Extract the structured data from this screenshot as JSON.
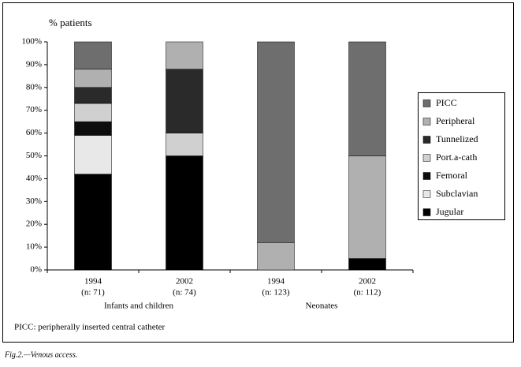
{
  "chart_data": {
    "type": "stacked_bar",
    "ylabel": "% patients",
    "categories": [
      [
        "1994",
        "(n: 71)"
      ],
      [
        "2002",
        "(n: 74)"
      ],
      [
        "1994",
        "(n: 123)"
      ],
      [
        "2002",
        "(n: 112)"
      ]
    ],
    "groups": [
      "Infants and children",
      "Neonates"
    ],
    "series": [
      {
        "name": "Jugular",
        "color": "#000000",
        "values": [
          42,
          50,
          0,
          5
        ]
      },
      {
        "name": "Subclavian",
        "color": "#e8e8e8",
        "values": [
          17,
          0,
          0,
          0
        ]
      },
      {
        "name": "Femoral",
        "color": "#0d0d0d",
        "values": [
          6,
          0,
          0,
          0
        ]
      },
      {
        "name": "Port.a-cath",
        "color": "#d0d0d0",
        "values": [
          8,
          10,
          0,
          0
        ]
      },
      {
        "name": "Tunnelized",
        "color": "#2a2a2a",
        "values": [
          7,
          28,
          0,
          0
        ]
      },
      {
        "name": "Peripheral",
        "color": "#b0b0b0",
        "values": [
          8,
          12,
          12,
          45
        ]
      },
      {
        "name": "PICC",
        "color": "#6e6e6e",
        "values": [
          12,
          0,
          88,
          50
        ]
      }
    ],
    "ylim": [
      0,
      100
    ],
    "yticks": [
      {
        "value": 0,
        "label": "0%"
      },
      {
        "value": 10,
        "label": "10%"
      },
      {
        "value": 20,
        "label": "20%"
      },
      {
        "value": 30,
        "label": "30%"
      },
      {
        "value": 40,
        "label": "40%"
      },
      {
        "value": 50,
        "label": "50%"
      },
      {
        "value": 60,
        "label": "60%"
      },
      {
        "value": 70,
        "label": "70%"
      },
      {
        "value": 80,
        "label": "80%"
      },
      {
        "value": 90,
        "label": "90%"
      },
      {
        "value": 100,
        "label": "100%"
      }
    ],
    "legend_position": "right",
    "footnote": "PICC: peripherally inserted central catheter",
    "caption": "Fig.2.—Venous access."
  }
}
